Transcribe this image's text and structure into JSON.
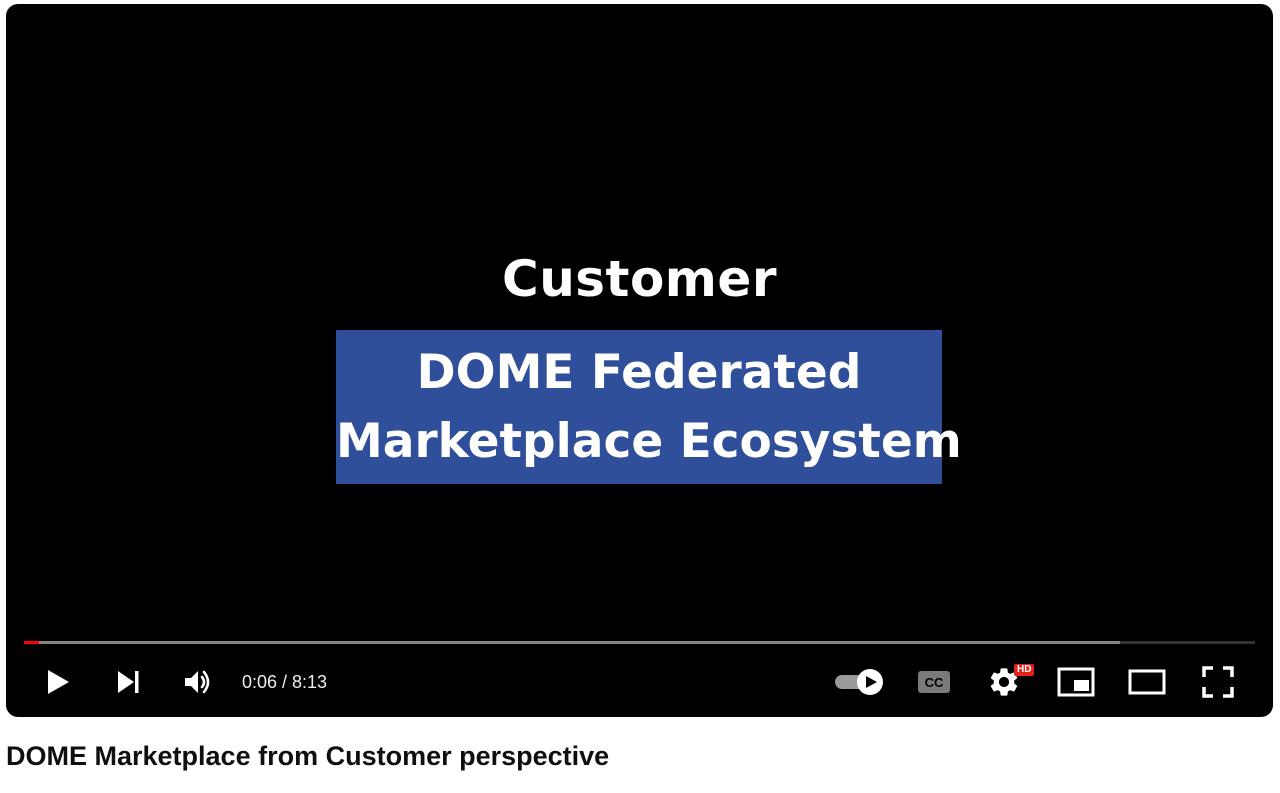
{
  "video": {
    "frame_heading": "Customer",
    "frame_box_line1": "DOME Federated",
    "frame_box_line2": "Marketplace Ecosystem",
    "title": "DOME Marketplace from Customer perspective"
  },
  "player": {
    "progress_played_fraction": 0.0123,
    "progress_buffered_fraction": 0.89,
    "time_display": "0:06 / 8:13",
    "quality_badge": "HD",
    "icons": {
      "play": "play-icon",
      "next": "next-icon",
      "volume": "volume-icon",
      "autoplay": "autoplay-toggle-icon",
      "captions": "captions-icon",
      "settings": "gear-icon",
      "miniplayer": "miniplayer-icon",
      "theater": "theater-mode-icon",
      "fullscreen": "fullscreen-icon"
    }
  },
  "colors": {
    "progress_played": "#ff0000",
    "frame_box": "#2f4f9b",
    "hd_badge": "#e62117"
  }
}
